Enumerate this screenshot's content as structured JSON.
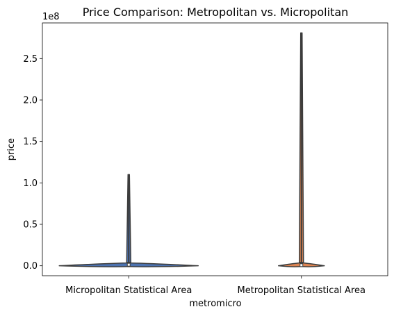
{
  "chart_data": {
    "type": "violin",
    "title": "Price Comparison: Metropolitan vs. Micropolitan",
    "xlabel": "metromicro",
    "ylabel": "price",
    "y_offset_label": "1e8",
    "ylim": [
      -12000000,
      293000000
    ],
    "yticks": [
      0,
      50000000,
      100000000,
      150000000,
      200000000,
      250000000
    ],
    "ytick_labels": [
      "0.0",
      "0.5",
      "1.0",
      "1.5",
      "2.0",
      "2.5"
    ],
    "categories": [
      "Micropolitan Statistical Area",
      "Metropolitan Statistical Area"
    ],
    "series": [
      {
        "category": "Micropolitan Statistical Area",
        "color": "#4c72b0",
        "min": -1000000,
        "max": 110000000,
        "q1": 500000,
        "median": 1500000,
        "q3": 3000000
      },
      {
        "category": "Metropolitan Statistical Area",
        "color": "#dd8452",
        "min": -1000000,
        "max": 281000000,
        "q1": 500000,
        "median": 1000000,
        "q3": 3000000
      }
    ]
  }
}
